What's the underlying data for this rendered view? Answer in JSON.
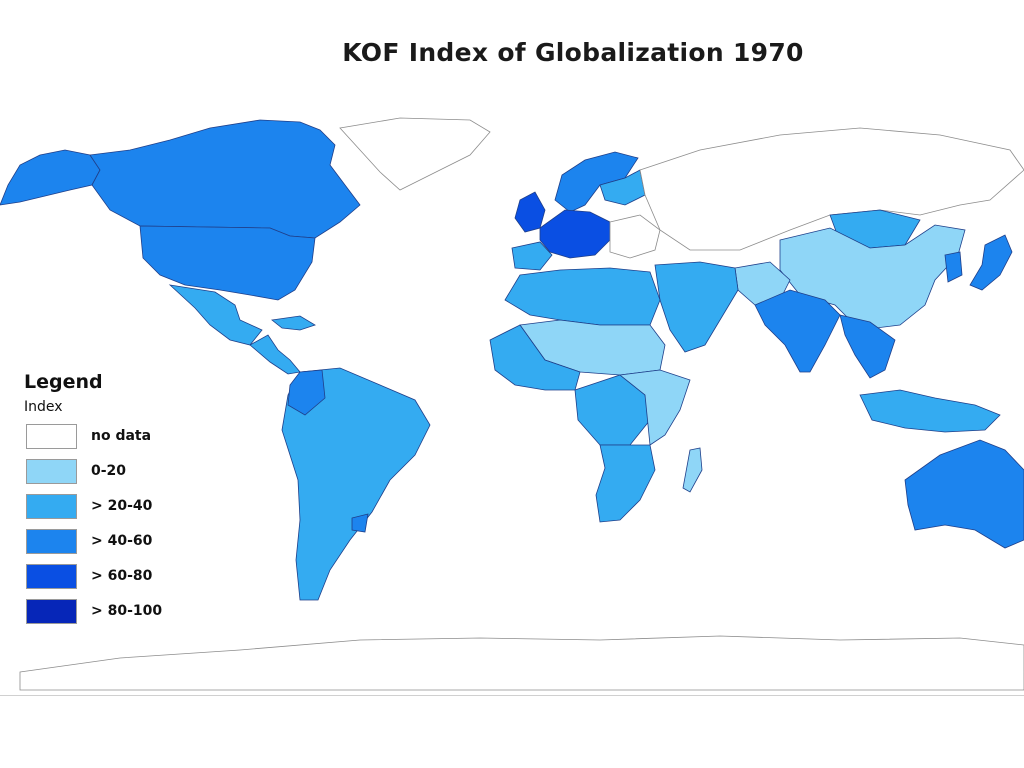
{
  "title": "KOF Index of Globalization 1970",
  "legend": {
    "title": "Legend",
    "subtitle": "Index",
    "items": [
      {
        "label": "no data",
        "color": "#ffffff"
      },
      {
        "label": "0-20",
        "color": "#8fd6f7"
      },
      {
        "label": "> 20-40",
        "color": "#34abf1"
      },
      {
        "label": "> 40-60",
        "color": "#1c84ee"
      },
      {
        "label": "> 60-80",
        "color": "#0a4fe3"
      },
      {
        "label": "> 80-100",
        "color": "#0626b8"
      }
    ]
  },
  "regions": [
    {
      "name": "alaska-region",
      "category": "> 40-60"
    },
    {
      "name": "canada-region",
      "category": "> 40-60"
    },
    {
      "name": "usa-region",
      "category": "> 40-60"
    },
    {
      "name": "greenland-region",
      "category": "no data"
    },
    {
      "name": "mexico-region",
      "category": "> 20-40"
    },
    {
      "name": "central-america-region",
      "category": "> 20-40"
    },
    {
      "name": "cuba-region",
      "category": "> 20-40"
    },
    {
      "name": "south-america-region",
      "category": "> 20-40"
    },
    {
      "name": "colombia-region",
      "category": "> 40-60"
    },
    {
      "name": "uruguay-region",
      "category": "> 40-60"
    },
    {
      "name": "scandinavia-region",
      "category": "> 40-60"
    },
    {
      "name": "finland-region",
      "category": "> 20-40"
    },
    {
      "name": "uk-region",
      "category": "> 60-80"
    },
    {
      "name": "western-europe-region",
      "category": "> 60-80"
    },
    {
      "name": "iberia-region",
      "category": "> 20-40"
    },
    {
      "name": "eastern-europe-region",
      "category": "no data"
    },
    {
      "name": "russia-region",
      "category": "no data"
    },
    {
      "name": "mongolia-region",
      "category": "> 20-40"
    },
    {
      "name": "china-region",
      "category": "0-20"
    },
    {
      "name": "korea-region",
      "category": "> 40-60"
    },
    {
      "name": "japan-region",
      "category": "> 40-60"
    },
    {
      "name": "iran-region",
      "category": "0-20"
    },
    {
      "name": "middle-east-region",
      "category": "> 20-40"
    },
    {
      "name": "india-region",
      "category": "> 40-60"
    },
    {
      "name": "southeast-asia-region",
      "category": "> 40-60"
    },
    {
      "name": "indonesia-region",
      "category": "> 20-40"
    },
    {
      "name": "australia-region",
      "category": "> 40-60"
    },
    {
      "name": "north-africa-region",
      "category": "> 20-40"
    },
    {
      "name": "sahel-region",
      "category": "0-20"
    },
    {
      "name": "west-africa-coast-region",
      "category": "> 20-40"
    },
    {
      "name": "central-africa-region",
      "category": "> 20-40"
    },
    {
      "name": "east-africa-region",
      "category": "0-20"
    },
    {
      "name": "southern-africa-region",
      "category": "> 20-40"
    },
    {
      "name": "madagascar-region",
      "category": "0-20"
    }
  ]
}
